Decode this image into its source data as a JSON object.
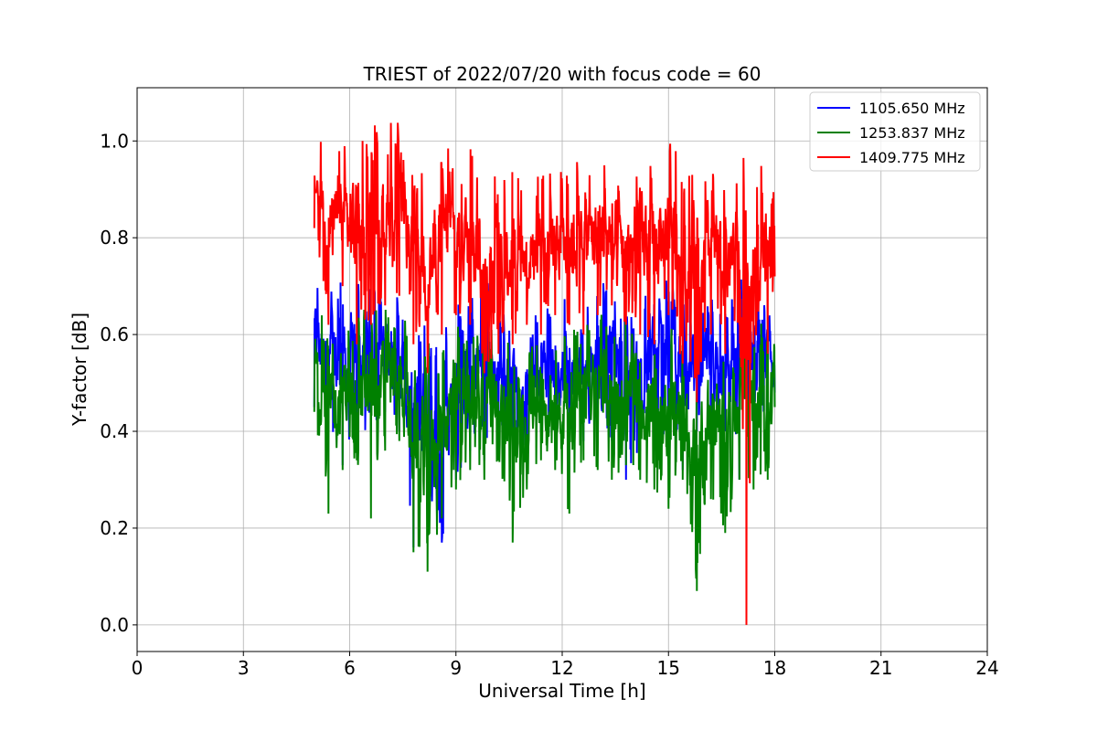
{
  "chart_data": {
    "type": "line",
    "title": "TRIEST of 2022/07/20 with focus code = 60",
    "xlabel": "Universal Time [h]",
    "ylabel": "Y-factor [dB]",
    "xlim": [
      0,
      24
    ],
    "ylim": [
      -0.055,
      1.11
    ],
    "xticks": [
      0,
      3,
      6,
      9,
      12,
      15,
      18,
      21,
      24
    ],
    "yticks": [
      0.0,
      0.2,
      0.4,
      0.6,
      0.8,
      1.0
    ],
    "xtick_labels": [
      "0",
      "3",
      "6",
      "9",
      "12",
      "15",
      "18",
      "21",
      "24"
    ],
    "ytick_labels": [
      "0.0",
      "0.2",
      "0.4",
      "0.6",
      "0.8",
      "1.0"
    ],
    "grid": true,
    "legend_position": "top-right",
    "series": [
      {
        "name": "1105.650 MHz",
        "color": "#0000ff",
        "x": [
          5.0,
          5.4,
          5.8,
          6.2,
          6.6,
          7.0,
          7.4,
          7.8,
          8.2,
          8.6,
          9.0,
          9.4,
          9.8,
          10.2,
          10.6,
          11.0,
          11.4,
          11.8,
          12.2,
          12.6,
          13.0,
          13.4,
          13.8,
          14.2,
          14.6,
          15.0,
          15.4,
          15.8,
          16.2,
          16.6,
          17.0,
          17.4,
          17.8,
          18.0
        ],
        "min": [
          0.45,
          0.4,
          0.33,
          0.38,
          0.4,
          0.44,
          0.4,
          0.16,
          0.27,
          0.17,
          0.3,
          0.36,
          0.34,
          0.38,
          0.4,
          0.35,
          0.4,
          0.36,
          0.42,
          0.38,
          0.4,
          0.38,
          0.3,
          0.36,
          0.42,
          0.38,
          0.32,
          0.4,
          0.36,
          0.4,
          0.3,
          0.45,
          0.4,
          0.48
        ],
        "max": [
          0.73,
          0.7,
          0.72,
          0.73,
          0.7,
          0.71,
          0.68,
          0.66,
          0.62,
          0.58,
          0.7,
          0.72,
          0.74,
          0.64,
          0.66,
          0.6,
          0.68,
          0.66,
          0.68,
          0.64,
          0.7,
          0.74,
          0.66,
          0.68,
          0.7,
          0.74,
          0.7,
          0.66,
          0.7,
          0.68,
          0.72,
          0.75,
          0.7,
          0.55
        ]
      },
      {
        "name": "1253.837 MHz",
        "color": "#008000",
        "x": [
          5.0,
          5.4,
          5.8,
          6.2,
          6.6,
          7.0,
          7.4,
          7.8,
          8.2,
          8.6,
          9.0,
          9.4,
          9.8,
          10.2,
          10.6,
          11.0,
          11.4,
          11.8,
          12.2,
          12.6,
          13.0,
          13.4,
          13.8,
          14.2,
          14.6,
          15.0,
          15.4,
          15.8,
          16.2,
          16.6,
          17.0,
          17.4,
          17.8,
          18.0
        ],
        "min": [
          0.44,
          0.23,
          0.32,
          0.34,
          0.22,
          0.36,
          0.38,
          0.15,
          0.11,
          0.22,
          0.28,
          0.32,
          0.3,
          0.34,
          0.17,
          0.28,
          0.34,
          0.32,
          0.23,
          0.34,
          0.32,
          0.3,
          0.33,
          0.3,
          0.28,
          0.24,
          0.3,
          0.07,
          0.26,
          0.19,
          0.3,
          0.28,
          0.3,
          0.45
        ],
        "max": [
          0.67,
          0.62,
          0.66,
          0.64,
          0.68,
          0.66,
          0.64,
          0.62,
          0.6,
          0.58,
          0.66,
          0.64,
          0.62,
          0.6,
          0.6,
          0.56,
          0.62,
          0.6,
          0.66,
          0.62,
          0.64,
          0.66,
          0.64,
          0.6,
          0.62,
          0.64,
          0.62,
          0.58,
          0.62,
          0.6,
          0.66,
          0.64,
          0.62,
          0.58
        ]
      },
      {
        "name": "1409.775 MHz",
        "color": "#ff0000",
        "x": [
          5.0,
          5.4,
          5.8,
          6.2,
          6.6,
          7.0,
          7.4,
          7.8,
          8.2,
          8.6,
          9.0,
          9.4,
          9.8,
          10.2,
          10.6,
          11.0,
          11.4,
          11.8,
          12.2,
          12.6,
          13.0,
          13.4,
          13.8,
          14.2,
          14.6,
          15.0,
          15.4,
          15.8,
          16.2,
          16.6,
          17.0,
          17.2,
          17.4,
          17.8,
          18.0
        ],
        "min": [
          0.82,
          0.62,
          0.7,
          0.58,
          0.62,
          0.66,
          0.68,
          0.58,
          0.52,
          0.6,
          0.64,
          0.62,
          0.52,
          0.56,
          0.58,
          0.62,
          0.6,
          0.64,
          0.62,
          0.6,
          0.64,
          0.66,
          0.62,
          0.6,
          0.58,
          0.64,
          0.54,
          0.46,
          0.6,
          0.56,
          0.62,
          0.0,
          0.58,
          0.56,
          0.72
        ],
        "max": [
          1.02,
          1.0,
          0.98,
          1.05,
          1.04,
          1.03,
          1.05,
          0.98,
          0.92,
          1.03,
          0.97,
          0.99,
          0.98,
          0.94,
          0.96,
          0.9,
          0.97,
          0.96,
          0.94,
          1.01,
          0.98,
          0.96,
          0.96,
          0.99,
          0.97,
          1.0,
          0.98,
          0.92,
          0.96,
          0.94,
          0.94,
          0.99,
          0.96,
          0.96,
          0.88
        ]
      }
    ]
  }
}
